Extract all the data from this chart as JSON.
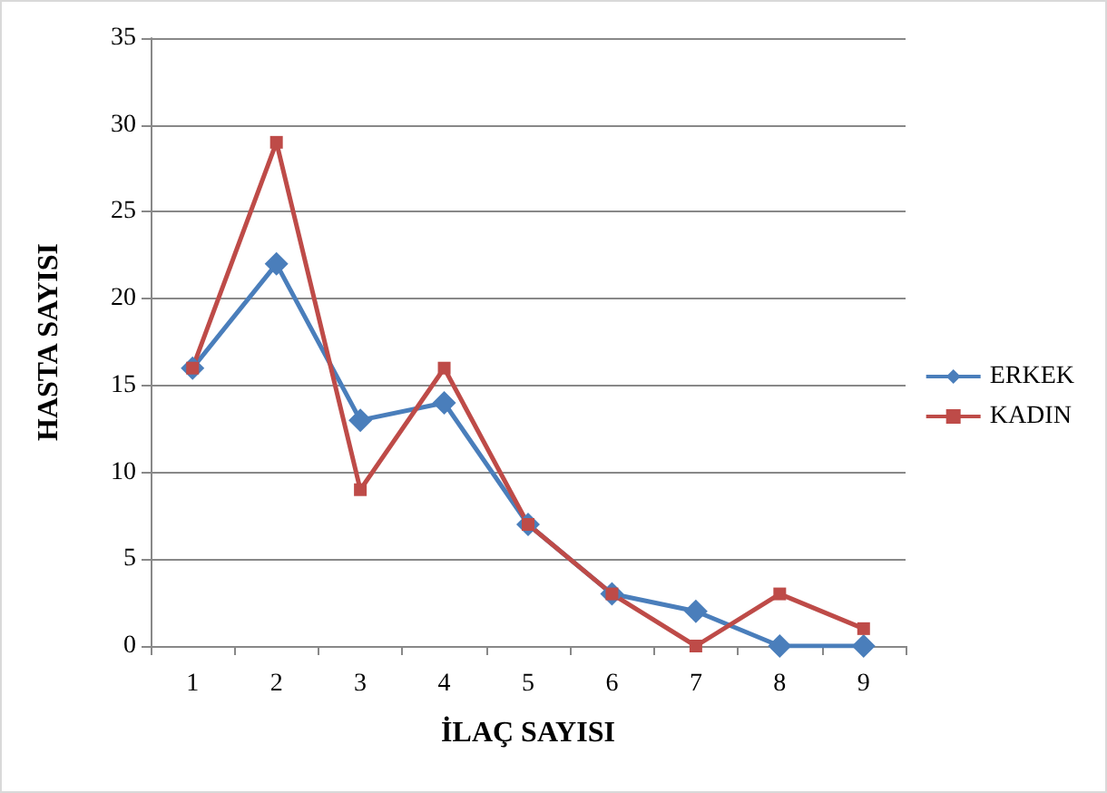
{
  "chart_data": {
    "type": "line",
    "xlabel": "İLAÇ SAYISI",
    "ylabel": "HASTA SAYISI",
    "categories": [
      "1",
      "2",
      "3",
      "4",
      "5",
      "6",
      "7",
      "8",
      "9"
    ],
    "series": [
      {
        "name": "ERKEK",
        "color": "#4a7ebb",
        "marker": "diamond",
        "values": [
          16,
          22,
          13,
          14,
          7,
          3,
          2,
          0,
          0
        ]
      },
      {
        "name": "KADIN",
        "color": "#be4b48",
        "marker": "square",
        "values": [
          16,
          29,
          9,
          16,
          7,
          3,
          0,
          3,
          1
        ]
      }
    ],
    "ylim": [
      0,
      35
    ],
    "yticks": [
      0,
      5,
      10,
      15,
      20,
      25,
      30,
      35
    ],
    "grid": "y",
    "legend": "right"
  }
}
